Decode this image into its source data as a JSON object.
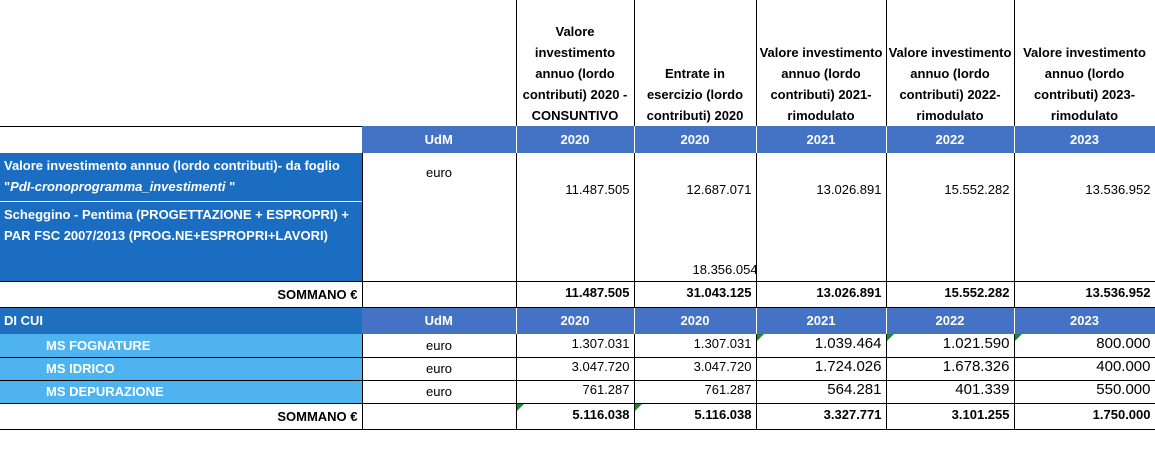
{
  "headers": [
    "Valore investimento annuo (lordo contributi) 2020 - CONSUNTIVO",
    "Entrate in esercizio (lordo contributi) 2020",
    "Valore investimento annuo (lordo contributi) 2021-rimodulato",
    "Valore investimento annuo (lordo contributi) 2022-rimodulato",
    "Valore investimento annuo (lordo contributi) 2023-rimodulato"
  ],
  "udm_label": "UdM",
  "years": [
    "2020",
    "2020",
    "2021",
    "2022",
    "2023"
  ],
  "row_valore": {
    "label_a": "Valore investimento annuo (lordo contributi)- da foglio \"",
    "label_italic": "PdI-cronoprogramma_investimenti",
    "label_b": " \"",
    "unit": "euro",
    "values": [
      "11.487.505",
      "12.687.071",
      "13.026.891",
      "15.552.282",
      "13.536.952"
    ]
  },
  "row_scheggino": {
    "label": "Scheggino - Pentima (PROGETTAZIONE + ESPROPRI) + PAR FSC 2007/2013 (PROG.NE+ESPROPRI+LAVORI)",
    "values": [
      "",
      "18.356.054",
      "",
      "",
      ""
    ]
  },
  "sum1": {
    "label": "SOMMANO €",
    "values": [
      "11.487.505",
      "31.043.125",
      "13.026.891",
      "15.552.282",
      "13.536.952"
    ]
  },
  "di_cui": {
    "label": "DI CUI",
    "udm": "UdM",
    "years": [
      "2020",
      "2020",
      "2021",
      "2022",
      "2023"
    ]
  },
  "sub_rows": [
    {
      "label": "MS FOGNATURE",
      "unit": "euro",
      "values": [
        "1.307.031",
        "1.307.031",
        "1.039.464",
        "1.021.590",
        "800.000"
      ]
    },
    {
      "label": "MS IDRICO",
      "unit": "euro",
      "values": [
        "3.047.720",
        "3.047.720",
        "1.724.026",
        "1.678.326",
        "400.000"
      ]
    },
    {
      "label": "MS DEPURAZIONE",
      "unit": "euro",
      "values": [
        "761.287",
        "761.287",
        "564.281",
        "401.339",
        "550.000"
      ]
    }
  ],
  "sum2": {
    "label": "SOMMANO €",
    "values": [
      "5.116.038",
      "5.116.038",
      "3.327.771",
      "3.101.255",
      "1.750.000"
    ]
  },
  "colors": {
    "band_blue": "#4472c4",
    "dark_blue": "#1a6dc0",
    "light_blue": "#4fb3f0",
    "error_marker": "#1a8a2a"
  }
}
